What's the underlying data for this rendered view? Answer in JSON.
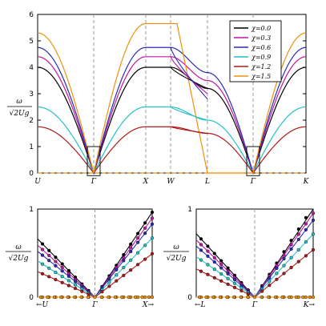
{
  "chart_data": [
    {
      "type": "line",
      "panel": "main",
      "ylabel": "ω / √(2Ug)",
      "ylim": [
        0,
        6
      ],
      "yticks": [
        "0",
        "1",
        "2",
        "3",
        "4",
        "5",
        "6"
      ],
      "x_ticks": [
        "U",
        "Γ",
        "X",
        "W",
        "L",
        "Γ",
        "K"
      ],
      "grid": "dashed vertical lines at Γ, X, W, L, Γ",
      "legend_placement": "top-right",
      "series": [
        {
          "name": "χ=0.0",
          "color": "#000000",
          "maxima": {
            "U": 4.0,
            "X": 4.0,
            "W": 4.0,
            "L": 3.2,
            "K": 4.0
          }
        },
        {
          "name": "χ=0.3",
          "color": "#c0169f",
          "maxima": {
            "U": 4.4,
            "X": 4.4,
            "W": 4.4,
            "L": 3.5,
            "K": 4.4
          }
        },
        {
          "name": "χ=0.6",
          "color": "#2a2ab8",
          "maxima": {
            "U": 4.75,
            "X": 4.75,
            "W": 4.75,
            "L": 3.8,
            "K": 4.75
          }
        },
        {
          "name": "χ=0.9",
          "color": "#22c0c8",
          "maxima": {
            "U": 2.5,
            "X": 2.5,
            "W": 2.5,
            "L": 2.0,
            "K": 2.5
          }
        },
        {
          "name": "χ=1.2",
          "color": "#b01818",
          "maxima": {
            "U": 1.75,
            "X": 1.75,
            "W": 1.75,
            "L": 1.5,
            "K": 1.75
          }
        },
        {
          "name": "χ=1.5",
          "color": "#f0900c",
          "maxima": {
            "U": 5.3,
            "X": 5.65,
            "W": 5.65,
            "L": 0.0,
            "K": 5.3
          }
        }
      ],
      "extra_branches_between_W_and_L": [
        {
          "color": "#000000",
          "W": 4.0,
          "L": 3.2
        },
        {
          "color": "#c0169f",
          "W": 4.4,
          "L": 3.0
        },
        {
          "color": "#2a2ab8",
          "W": 4.75,
          "L": 2.8
        },
        {
          "color": "#22c0c8",
          "W": 2.5,
          "L": 2.0
        },
        {
          "color": "#b01818",
          "W": 1.75,
          "L": 1.5
        }
      ],
      "flat_mode": {
        "value": 0,
        "color": "#f0900c",
        "style": "dashed"
      }
    },
    {
      "type": "scatter",
      "panel": "inset-left",
      "ylabel": "ω / √(2Ug)",
      "ylim": [
        0,
        1
      ],
      "yticks": [
        "0",
        "1"
      ],
      "x_ticks": [
        "←U",
        "Γ",
        "X→"
      ],
      "note": "zoom near Γ; lines with circle markers",
      "series_slopes_left": [
        0.66,
        0.59,
        0.52,
        0.41,
        0.29,
        0.0
      ],
      "series_slopes_right": [
        0.86,
        0.8,
        0.74,
        0.6,
        0.44,
        0.0
      ]
    },
    {
      "type": "scatter",
      "panel": "inset-right",
      "ylabel": "ω / √(2Ug)",
      "ylim": [
        0,
        1
      ],
      "yticks": [
        "0",
        "1"
      ],
      "x_ticks": [
        "←L",
        "Γ",
        "K→"
      ],
      "note": "zoom near Γ; lines with circle markers",
      "series_slopes_left": [
        0.72,
        0.65,
        0.58,
        0.46,
        0.32,
        0.0
      ],
      "series_slopes_right": [
        0.92,
        0.85,
        0.78,
        0.64,
        0.48,
        0.0
      ]
    }
  ]
}
